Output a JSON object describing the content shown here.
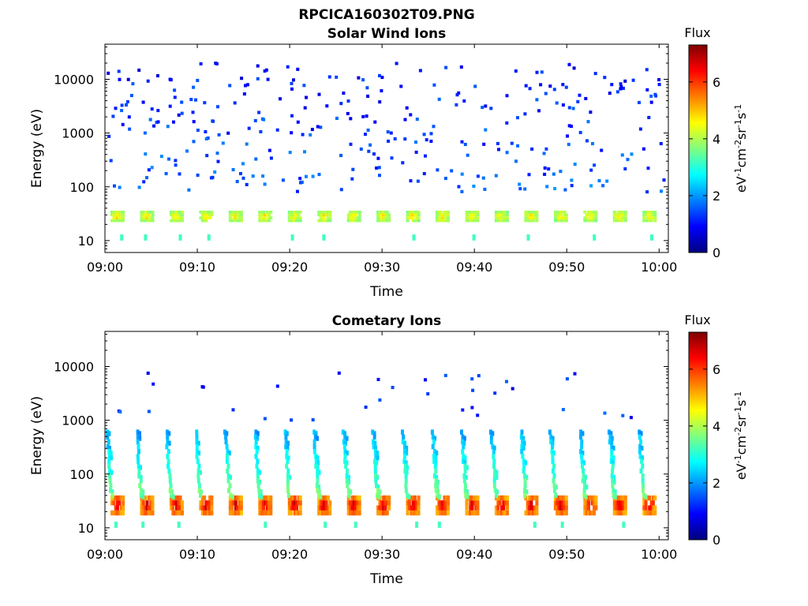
{
  "figure_title": "RPCICA160302T09.PNG",
  "colormap": [
    "#00007f",
    "#0000ff",
    "#007fff",
    "#00ffff",
    "#7fff7f",
    "#ffff00",
    "#ff7f00",
    "#ff0000",
    "#7f0000"
  ],
  "colorbar": {
    "title": "Flux",
    "units": "eV-1cm-2sr-1s-1",
    "range": [
      0,
      7.3
    ],
    "ticks": [
      "0",
      "2",
      "4",
      "6"
    ]
  },
  "chart_data": [
    {
      "type": "heatmap",
      "title": "Solar Wind Ions",
      "xlabel": "Time",
      "ylabel": "Energy (eV)",
      "x_range": [
        "09:00",
        "10:01"
      ],
      "y_scale": "log",
      "y_range": [
        6,
        45000
      ],
      "x_tick_labels": [
        "09:00",
        "09:10",
        "09:20",
        "09:30",
        "09:40",
        "09:50",
        "10:00"
      ],
      "y_tick_labels": [
        "10",
        "100",
        "1000",
        "10000"
      ],
      "grid": false,
      "low_energy_band": {
        "energy_min_eV": 22,
        "energy_max_eV": 36,
        "period_minutes": 3.2,
        "first_burst_minutes": 1.2,
        "flux_level": 3.8,
        "peak_flux": 4.9
      },
      "scattered_counts": {
        "energy_min_eV": 80,
        "energy_max_eV": 20000,
        "flux_level": 1.6,
        "density": "sparse"
      }
    },
    {
      "type": "heatmap",
      "title": "Cometary Ions",
      "xlabel": "Time",
      "ylabel": "Energy (eV)",
      "x_range": [
        "09:00",
        "10:01"
      ],
      "y_scale": "log",
      "y_range": [
        6,
        45000
      ],
      "x_tick_labels": [
        "09:00",
        "09:10",
        "09:20",
        "09:30",
        "09:40",
        "09:50",
        "10:00"
      ],
      "y_tick_labels": [
        "10",
        "100",
        "1000",
        "10000"
      ],
      "grid": false,
      "low_energy_band": {
        "energy_min_eV": 17,
        "energy_max_eV": 40,
        "period_minutes": 3.2,
        "first_burst_minutes": 1.2,
        "flux_level": 5.2,
        "peak_flux": 7.0
      },
      "energy_dispersed_arcs": {
        "energy_top_eV": 600,
        "energy_bottom_eV": 40,
        "arc_duration_minutes": 1.3,
        "flux_level": 2.8
      },
      "scattered_counts": {
        "energy_min_eV": 1000,
        "energy_max_eV": 8000,
        "flux_level": 1.3,
        "density": "very sparse"
      }
    }
  ]
}
